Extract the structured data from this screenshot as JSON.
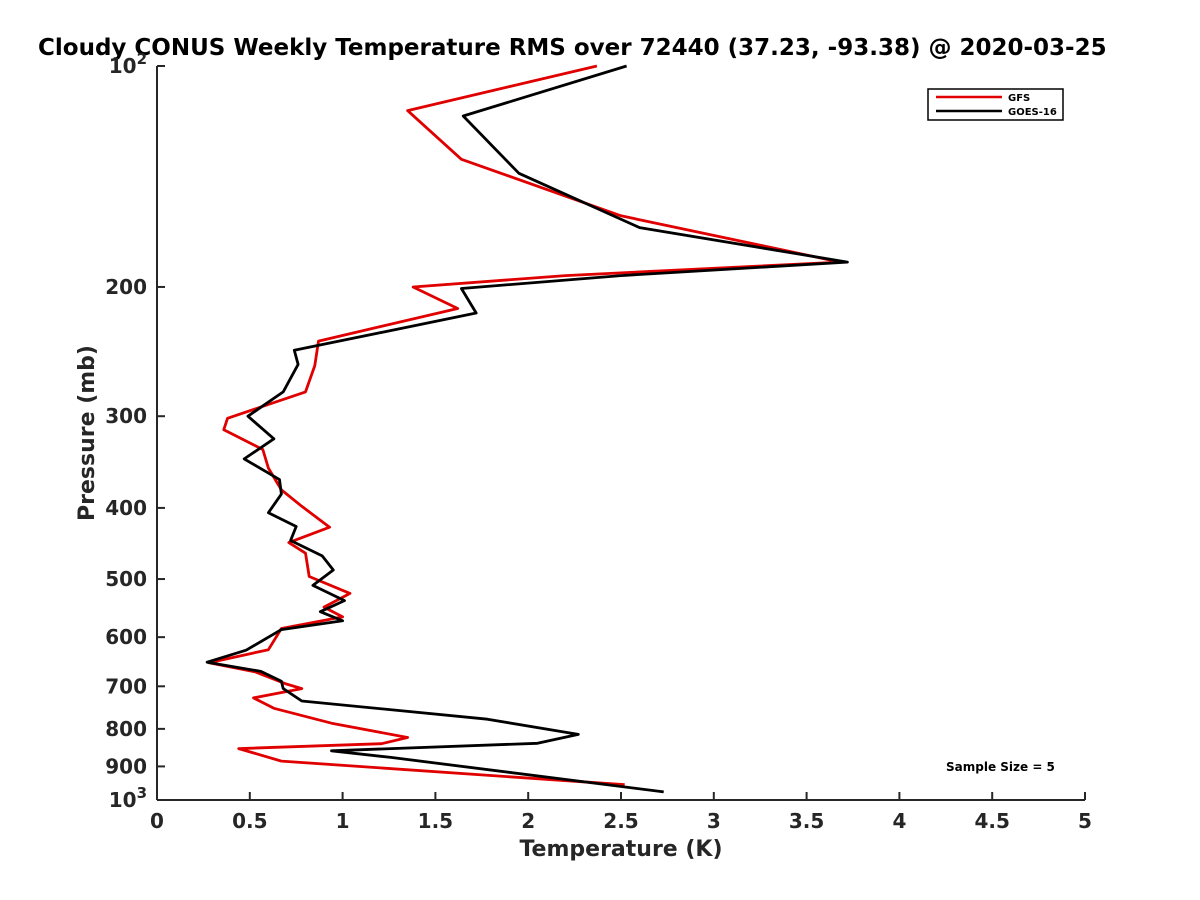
{
  "chart_data": {
    "type": "line",
    "title": "Cloudy CONUS Weekly Temperature RMS over 72440 (37.23, -93.38) @ 2020-03-25",
    "xlabel": "Temperature (K)",
    "ylabel": "Pressure (mb)",
    "xlim": [
      0,
      5
    ],
    "ylim": [
      100,
      1000
    ],
    "y_scale": "log",
    "y_reversed": true,
    "grid": false,
    "legend_position": "top-right",
    "x_ticks": [
      "0",
      "0.5",
      "1",
      "1.5",
      "2",
      "2.5",
      "3",
      "3.5",
      "4",
      "4.5",
      "5"
    ],
    "y_ticks": [
      {
        "value": 100,
        "label": "10",
        "sup": "2"
      },
      {
        "value": 200,
        "label": "200",
        "sup": ""
      },
      {
        "value": 300,
        "label": "300",
        "sup": ""
      },
      {
        "value": 400,
        "label": "400",
        "sup": ""
      },
      {
        "value": 500,
        "label": "500",
        "sup": ""
      },
      {
        "value": 600,
        "label": "600",
        "sup": ""
      },
      {
        "value": 700,
        "label": "700",
        "sup": ""
      },
      {
        "value": 800,
        "label": "800",
        "sup": ""
      },
      {
        "value": 900,
        "label": "900",
        "sup": ""
      },
      {
        "value": 1000,
        "label": "10",
        "sup": "3"
      }
    ],
    "annotation": "Sample Size = 5",
    "series": [
      {
        "name": "GFS",
        "color": "#e00000",
        "points": [
          [
            2.37,
            100
          ],
          [
            1.35,
            115
          ],
          [
            1.64,
            134
          ],
          [
            2.5,
            160
          ],
          [
            3.68,
            185
          ],
          [
            2.2,
            193
          ],
          [
            1.38,
            200
          ],
          [
            1.62,
            214
          ],
          [
            0.87,
            237
          ],
          [
            0.85,
            256
          ],
          [
            0.8,
            278
          ],
          [
            0.38,
            302
          ],
          [
            0.36,
            313
          ],
          [
            0.57,
            333
          ],
          [
            0.6,
            353
          ],
          [
            0.67,
            378
          ],
          [
            0.78,
            398
          ],
          [
            0.93,
            425
          ],
          [
            0.71,
            446
          ],
          [
            0.8,
            461
          ],
          [
            0.82,
            496
          ],
          [
            1.04,
            523
          ],
          [
            0.9,
            546
          ],
          [
            1.0,
            563
          ],
          [
            0.67,
            584
          ],
          [
            0.6,
            624
          ],
          [
            0.28,
            650
          ],
          [
            0.53,
            669
          ],
          [
            0.69,
            694
          ],
          [
            0.78,
            705
          ],
          [
            0.52,
            726
          ],
          [
            0.63,
            750
          ],
          [
            0.94,
            786
          ],
          [
            1.35,
            822
          ],
          [
            1.21,
            838
          ],
          [
            0.44,
            851
          ],
          [
            0.67,
            885
          ],
          [
            2.52,
            953
          ]
        ]
      },
      {
        "name": "GOES-16",
        "color": "#000000",
        "points": [
          [
            2.53,
            100
          ],
          [
            1.65,
            117
          ],
          [
            1.95,
            140
          ],
          [
            2.6,
            166
          ],
          [
            3.72,
            185
          ],
          [
            2.5,
            193
          ],
          [
            1.64,
            201
          ],
          [
            1.72,
            217
          ],
          [
            0.74,
            244
          ],
          [
            0.76,
            255
          ],
          [
            0.68,
            278
          ],
          [
            0.49,
            300
          ],
          [
            0.63,
            322
          ],
          [
            0.47,
            343
          ],
          [
            0.66,
            366
          ],
          [
            0.67,
            383
          ],
          [
            0.6,
            406
          ],
          [
            0.75,
            424
          ],
          [
            0.72,
            443
          ],
          [
            0.89,
            465
          ],
          [
            0.95,
            486
          ],
          [
            0.84,
            510
          ],
          [
            1.01,
            535
          ],
          [
            0.88,
            554
          ],
          [
            1.0,
            570
          ],
          [
            0.67,
            586
          ],
          [
            0.48,
            625
          ],
          [
            0.27,
            649
          ],
          [
            0.56,
            668
          ],
          [
            0.67,
            689
          ],
          [
            0.68,
            705
          ],
          [
            0.78,
            733
          ],
          [
            1.78,
            776
          ],
          [
            2.27,
            814
          ],
          [
            2.05,
            837
          ],
          [
            0.94,
            857
          ],
          [
            1.26,
            875
          ],
          [
            2.73,
            975
          ]
        ]
      }
    ]
  }
}
